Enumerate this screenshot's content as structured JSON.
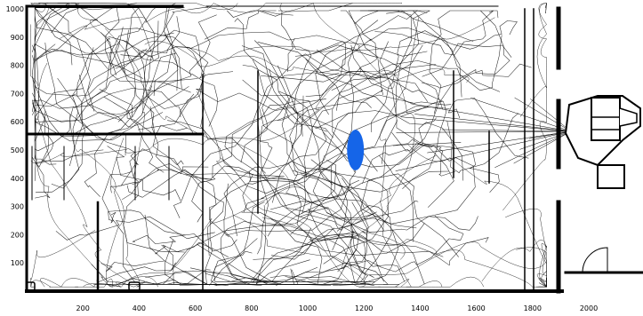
{
  "chart_data": {
    "type": "trajectory-map",
    "title": "",
    "xlabel": "",
    "ylabel": "",
    "x_ticks": [
      "200",
      "400",
      "600",
      "800",
      "1000",
      "1200",
      "1400",
      "1600",
      "1800",
      "2000"
    ],
    "y_ticks": [
      "1000",
      "900",
      "800",
      "700",
      "600",
      "500",
      "400",
      "300",
      "200",
      "100"
    ],
    "x_range": [
      0,
      2180
    ],
    "y_range": [
      0,
      1030
    ],
    "grid": false,
    "marker": {
      "shape": "ellipse",
      "cx": 1170,
      "cy": 500,
      "rx": 30,
      "ry": 72,
      "color": "#1565e8"
    },
    "trajectory_color": "#000000",
    "wall_color": "#000000",
    "trajectory_clusters": [
      {
        "region": "upper-left room",
        "cx": 190,
        "cy": 820,
        "sx": 170,
        "sy": 150,
        "density": "high"
      },
      {
        "region": "upper-center corridor",
        "cx": 1180,
        "cy": 690,
        "sx": 230,
        "sy": 190,
        "density": "high"
      },
      {
        "region": "lower-center area",
        "cx": 1050,
        "cy": 250,
        "sx": 300,
        "sy": 160,
        "density": "medium"
      },
      {
        "region": "lower-left area",
        "cx": 820,
        "cy": 130,
        "sx": 200,
        "sy": 90,
        "density": "medium"
      }
    ]
  }
}
